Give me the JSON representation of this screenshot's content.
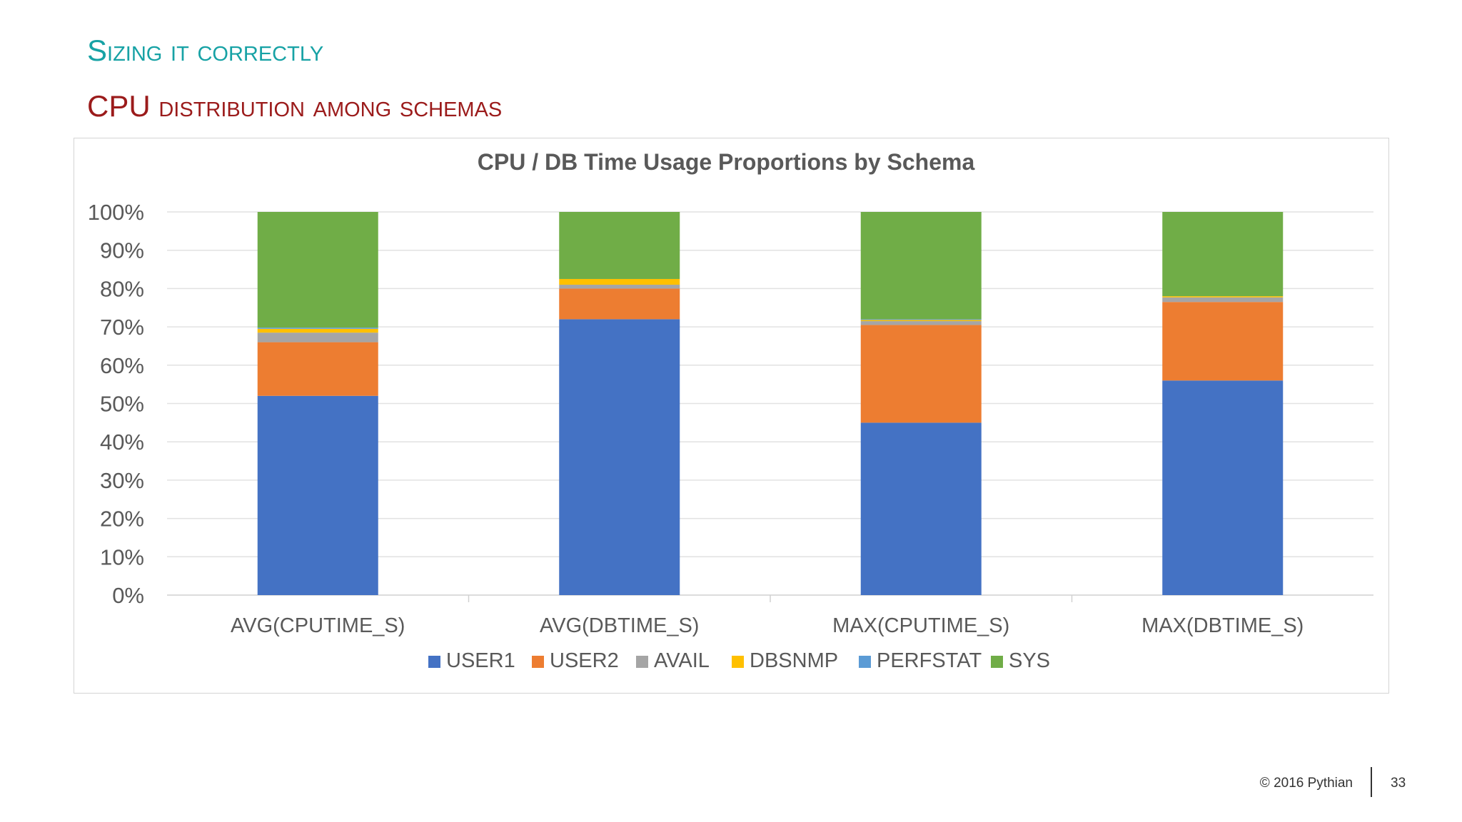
{
  "slide": {
    "title": "Sizing it correctly",
    "subtitle": "CPU distribution among schemas",
    "copyright": "© 2016 Pythian",
    "page_number": "33"
  },
  "chart_data": {
    "type": "bar",
    "stacked": true,
    "title": "CPU / DB Time Usage Proportions by Schema",
    "categories": [
      "AVG(CPUTIME_S)",
      "AVG(DBTIME_S)",
      "MAX(CPUTIME_S)",
      "MAX(DBTIME_S)"
    ],
    "y_ticks": [
      "0%",
      "10%",
      "20%",
      "30%",
      "40%",
      "50%",
      "60%",
      "70%",
      "80%",
      "90%",
      "100%"
    ],
    "ylim": [
      0,
      100
    ],
    "grid": true,
    "legend_position": "bottom",
    "series": [
      {
        "name": "USER1",
        "color": "#4472C4",
        "values": [
          52,
          72,
          45,
          56
        ]
      },
      {
        "name": "USER2",
        "color": "#ED7D31",
        "values": [
          14,
          8,
          25.5,
          20.5
        ]
      },
      {
        "name": "AVAIL",
        "color": "#A5A5A5",
        "values": [
          2.5,
          1,
          1,
          1.2
        ]
      },
      {
        "name": "DBSNMP",
        "color": "#FFC000",
        "values": [
          1,
          1.5,
          0.3,
          0.3
        ]
      },
      {
        "name": "PERFSTAT",
        "color": "#5B9BD5",
        "values": [
          0.3,
          0,
          0.2,
          0
        ]
      },
      {
        "name": "SYS",
        "color": "#70AD47",
        "values": [
          30.2,
          17.5,
          28,
          22
        ]
      }
    ]
  }
}
